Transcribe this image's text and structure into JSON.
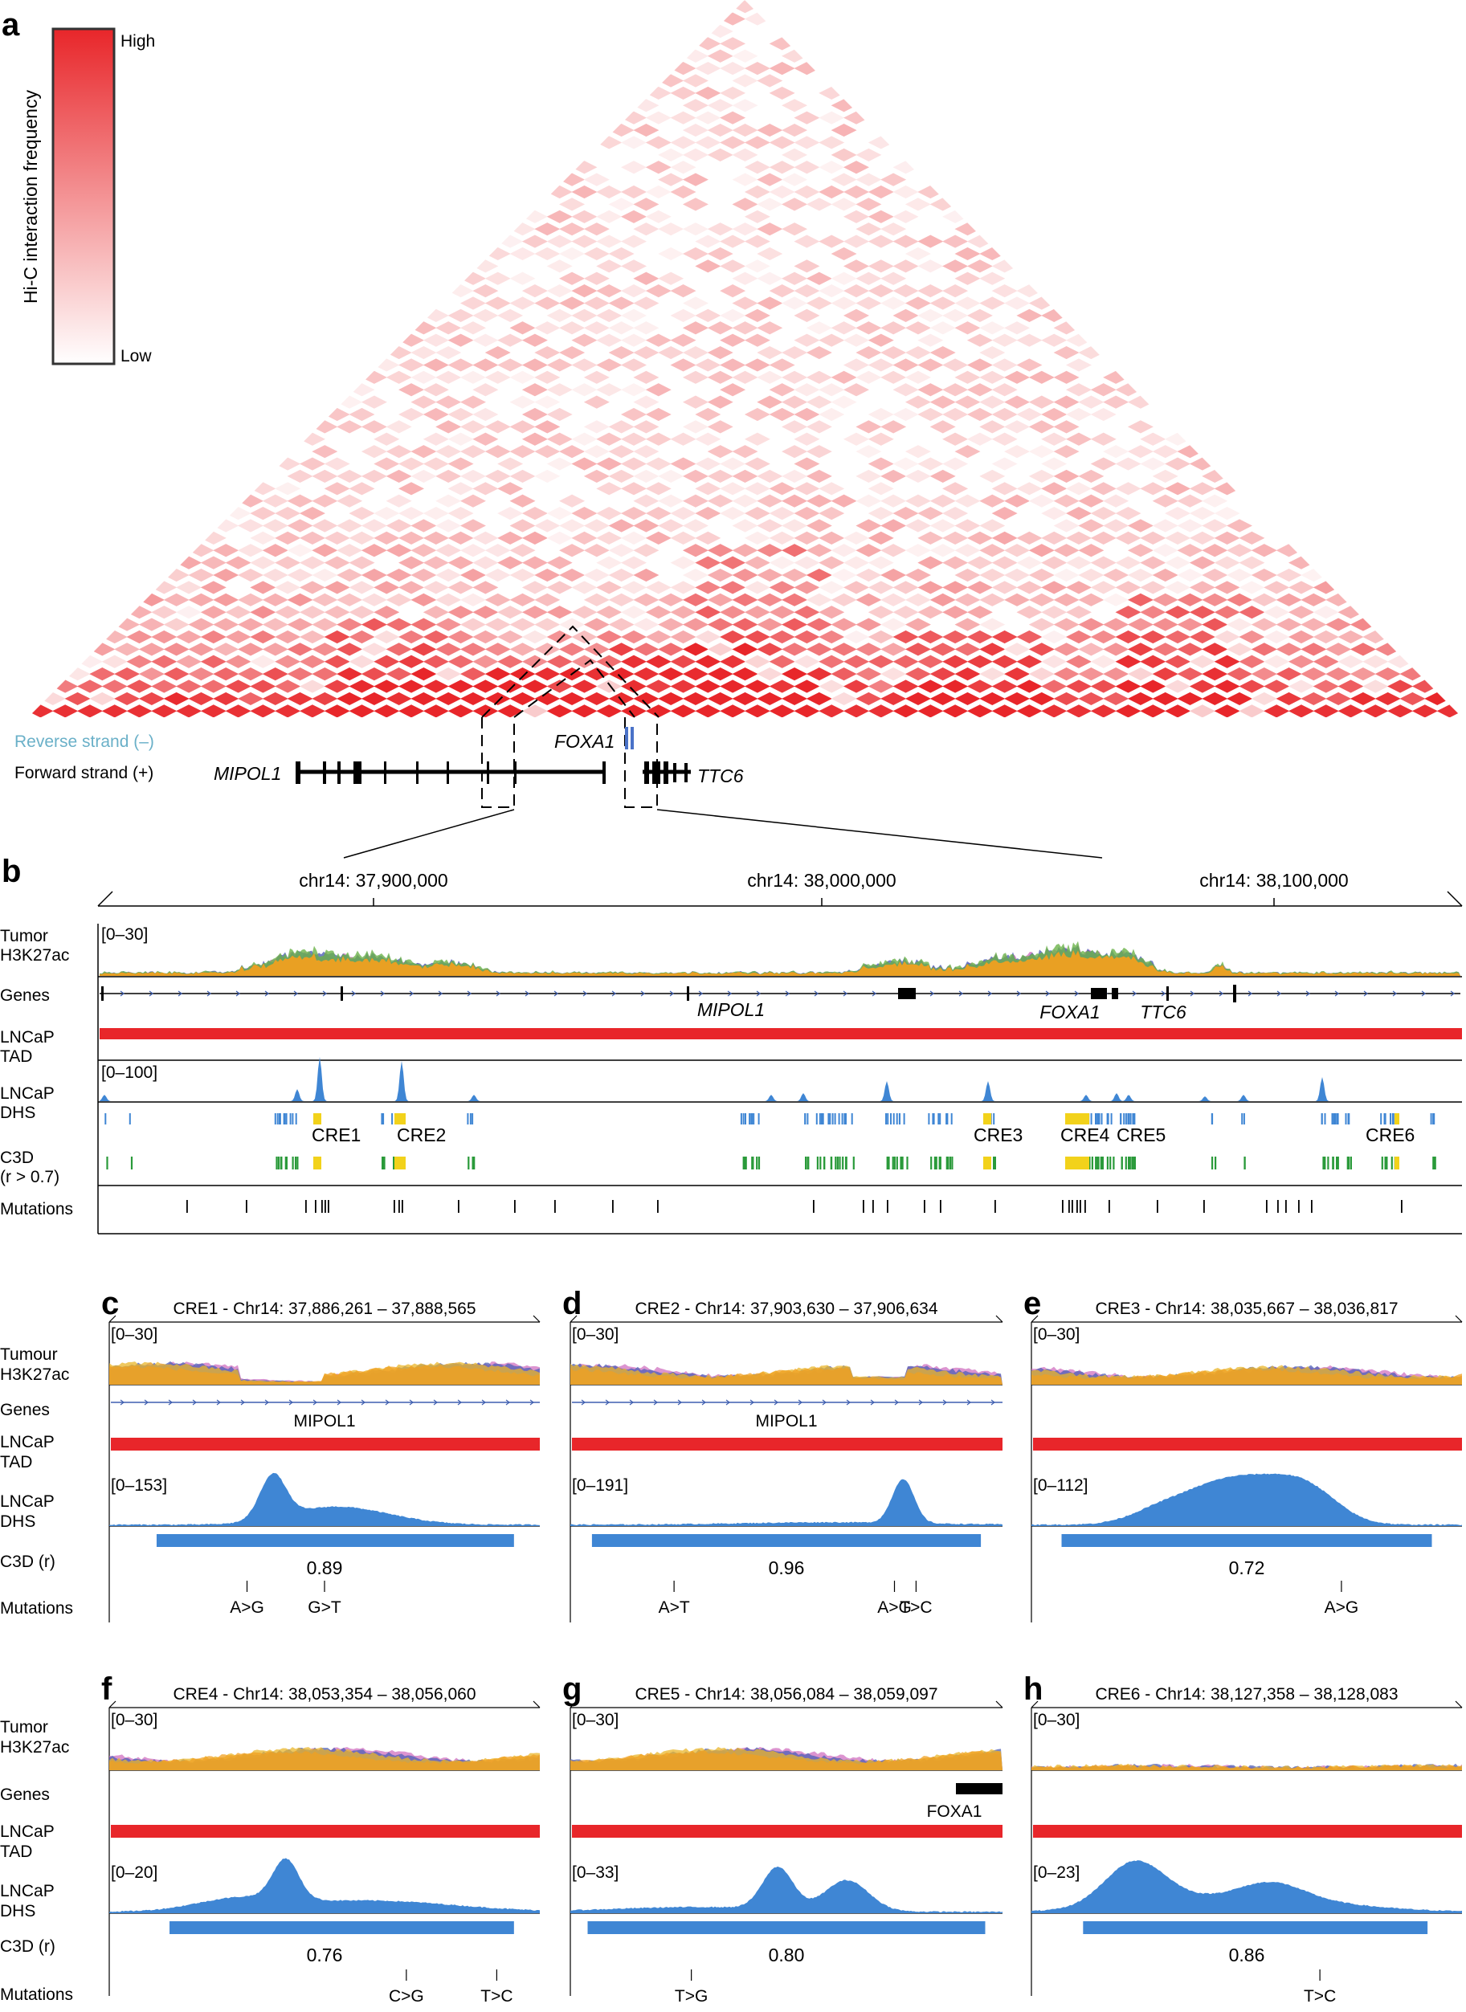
{
  "colors": {
    "tad": "#e8262a",
    "dhs": "#3f86d4",
    "cre": "#f2d21b",
    "c3d": "#2a9a3a",
    "reverse": "#6ab0c8",
    "h3k27ac_main": "#f0a020",
    "h3k27ac_alt": [
      "#d070c0",
      "#4d5fb6",
      "#6cb34a",
      "#e9b52a"
    ]
  },
  "panel_a": {
    "label": "a",
    "legend": {
      "title": "Hi-C interaction frequency",
      "high": "High",
      "low": "Low"
    },
    "strands": {
      "reverse": "Reverse strand (–)",
      "forward": "Forward strand (+)"
    },
    "genes": {
      "left": "MIPOL1",
      "middle": "FOXA1",
      "right": "TTC6"
    }
  },
  "panel_b": {
    "label": "b",
    "coords": [
      "chr14: 37,900,000",
      "chr14: 38,000,000",
      "chr14: 38,100,000"
    ],
    "tracks": {
      "h3k27ac_l1": "Tumor",
      "h3k27ac_l2": "H3K27ac",
      "genes": "Genes",
      "tad_l1": "LNCaP",
      "tad_l2": "TAD",
      "dhs_l1": "LNCaP",
      "dhs_l2": "DHS",
      "c3d_l1": "C3D",
      "c3d_l2": "(r > 0.7)",
      "mutations": "Mutations"
    },
    "ranges": {
      "h3k27ac": "[0–30]",
      "dhs": "[0–100]"
    },
    "gene_labels": [
      "MIPOL1",
      "FOXA1",
      "TTC6"
    ],
    "cre_labels": [
      "CRE1",
      "CRE2",
      "CRE3",
      "CRE4",
      "CRE5",
      "CRE6"
    ]
  },
  "panel_rows": {
    "row1": {
      "h3_l1": "Tumour",
      "h3_l2": "H3K27ac",
      "genes": "Genes",
      "tad_l1": "LNCaP",
      "tad_l2": "TAD",
      "dhs_l1": "LNCaP",
      "dhs_l2": "DHS",
      "c3d": "C3D (r)",
      "mutations": "Mutations"
    },
    "row2": {
      "h3_l1": "Tumor",
      "h3_l2": "H3K27ac",
      "genes": "Genes",
      "tad_l1": "LNCaP",
      "tad_l2": "TAD",
      "dhs_l1": "LNCaP",
      "dhs_l2": "DHS",
      "c3d": "C3D (r)",
      "mutations": "Mutations"
    }
  },
  "subpanels": [
    {
      "label": "c",
      "title": "CRE1 - Chr14: 37,886,261 – 37,888,565",
      "h3_range": "[0–30]",
      "dhs_range": "[0–153]",
      "c3d_r": "0.89",
      "gene": "MIPOL1",
      "mutations": [
        "A>G",
        "G>T"
      ]
    },
    {
      "label": "d",
      "title": "CRE2 - Chr14: 37,903,630 – 37,906,634",
      "h3_range": "[0–30]",
      "dhs_range": "[0–191]",
      "c3d_r": "0.96",
      "gene": "MIPOL1",
      "mutations": [
        "A>T",
        "A>G",
        "T>C"
      ]
    },
    {
      "label": "e",
      "title": "CRE3 - Chr14: 38,035,667 – 38,036,817",
      "h3_range": "[0–30]",
      "dhs_range": "[0–112]",
      "c3d_r": "0.72",
      "gene": "",
      "mutations": [
        "A>G"
      ]
    },
    {
      "label": "f",
      "title": "CRE4 - Chr14: 38,053,354 – 38,056,060",
      "h3_range": "[0–30]",
      "dhs_range": "[0–20]",
      "c3d_r": "0.76",
      "gene": "",
      "mutations": [
        "C>G",
        "T>C"
      ]
    },
    {
      "label": "g",
      "title": "CRE5 - Chr14: 38,056,084 – 38,059,097",
      "h3_range": "[0–30]",
      "dhs_range": "[0–33]",
      "c3d_r": "0.80",
      "gene": "FOXA1",
      "mutations": [
        "T>G"
      ]
    },
    {
      "label": "h",
      "title": "CRE6 - Chr14: 38,127,358 – 38,128,083",
      "h3_range": "[0–30]",
      "dhs_range": "[0–23]",
      "c3d_r": "0.86",
      "gene": "",
      "mutations": [
        "T>C"
      ]
    }
  ]
}
